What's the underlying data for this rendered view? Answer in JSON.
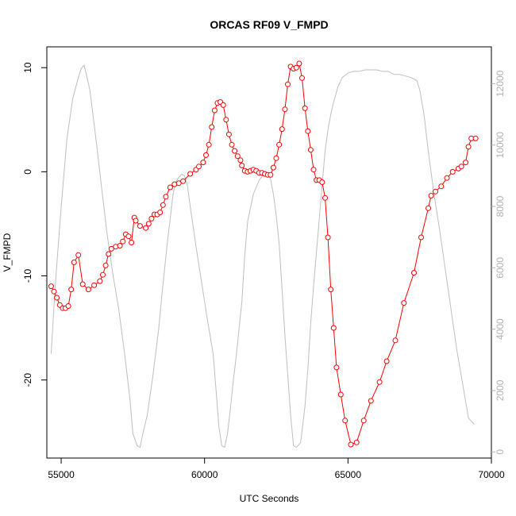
{
  "chart_data": {
    "type": "line",
    "title": "ORCAS RF09 V_FMPD",
    "xlabel": "UTC Seconds",
    "ylabel": "V_FMPD",
    "xlim": [
      54500,
      70000
    ],
    "ylim": [
      -27.5,
      12.0
    ],
    "xticks": [
      55000,
      60000,
      65000,
      70000
    ],
    "yticks": [
      -20,
      -10,
      0,
      10
    ],
    "y2lim": [
      -200,
      13200
    ],
    "y2ticks": [
      0,
      2000,
      4000,
      6000,
      8000,
      10000,
      12000
    ],
    "colors": {
      "series": "#ff0000",
      "secondary": "#bebebe"
    },
    "series": [
      {
        "marker": "open-circle",
        "x": [
          54650,
          54750,
          54850,
          54950,
          55050,
          55150,
          55250,
          55350,
          55450,
          55600,
          55750,
          55950,
          56150,
          56350,
          56450,
          56550,
          56650,
          56750,
          56900,
          57050,
          57150,
          57250,
          57350,
          57450,
          57550,
          57600,
          57750,
          57950,
          58050,
          58150,
          58250,
          58350,
          58450,
          58550,
          58650,
          58800,
          58950,
          59100,
          59250,
          59500,
          59700,
          59800,
          59950,
          60050,
          60150,
          60250,
          60350,
          60450,
          60550,
          60650,
          60750,
          60850,
          60950,
          61050,
          61150,
          61250,
          61300,
          61400,
          61500,
          61600,
          61700,
          61800,
          61900,
          62000,
          62100,
          62200,
          62300,
          62400,
          62500,
          62600,
          62700,
          62800,
          62900,
          63000,
          63100,
          63200,
          63300,
          63400,
          63500,
          63600,
          63700,
          63800,
          63900,
          64000,
          64100,
          64200,
          64300,
          64400,
          64500,
          64600,
          64750,
          64900,
          65100,
          65300,
          65550,
          65800,
          66100,
          66350,
          66650,
          66950,
          67300,
          67550,
          67800,
          67900,
          68050,
          68250,
          68450,
          68650,
          68850,
          68950,
          69100,
          69200,
          69300,
          69450
        ],
        "y": [
          -11.0,
          -11.5,
          -12.1,
          -12.8,
          -13.1,
          -13.1,
          -12.9,
          -11.3,
          -8.7,
          -8.0,
          -10.8,
          -11.3,
          -10.9,
          -10.5,
          -9.9,
          -9.0,
          -7.9,
          -7.4,
          -7.2,
          -7.1,
          -6.7,
          -6.0,
          -6.2,
          -6.8,
          -4.4,
          -4.7,
          -5.2,
          -5.4,
          -5.0,
          -4.5,
          -4.1,
          -4.1,
          -3.9,
          -3.2,
          -2.4,
          -1.5,
          -1.2,
          -1.1,
          -0.9,
          -0.2,
          0.2,
          0.5,
          0.9,
          1.6,
          2.6,
          4.3,
          5.9,
          6.6,
          6.7,
          6.4,
          5.0,
          3.6,
          2.6,
          2.0,
          1.5,
          1.1,
          0.6,
          0.1,
          0.0,
          0.1,
          0.2,
          0.1,
          -0.1,
          -0.1,
          -0.2,
          -0.3,
          -0.3,
          0.4,
          1.3,
          2.6,
          4.1,
          6.0,
          8.4,
          10.1,
          9.9,
          10.0,
          10.4,
          9.0,
          6.1,
          3.9,
          2.1,
          0.2,
          -0.8,
          -0.8,
          -1.0,
          -2.5,
          -6.3,
          -11.3,
          -15.0,
          -18.8,
          -21.4,
          -23.9,
          -26.2,
          -26.0,
          -23.9,
          -22.0,
          -20.2,
          -18.2,
          -16.2,
          -12.6,
          -9.7,
          -6.3,
          -3.5,
          -2.3,
          -1.9,
          -1.4,
          -0.6,
          0.0,
          0.3,
          0.5,
          0.9,
          2.4,
          3.2,
          3.2
        ]
      },
      {
        "axis": "right",
        "x": [
          54650,
          54800,
          55000,
          55200,
          55400,
          55600,
          55700,
          55800,
          56000,
          56200,
          56400,
          56600,
          56800,
          57000,
          57200,
          57400,
          57500,
          57650,
          57750,
          57850,
          58000,
          58200,
          58400,
          58500,
          58600,
          58700,
          58800,
          58900,
          59000,
          59100,
          59200,
          59300,
          59400,
          59500,
          59700,
          59900,
          60100,
          60300,
          60400,
          60500,
          60600,
          60700,
          60800,
          60900,
          61000,
          61100,
          61200,
          61300,
          61400,
          61500,
          61700,
          61900,
          62100,
          62200,
          62300,
          62400,
          62500,
          62600,
          62700,
          62800,
          62900,
          63000,
          63100,
          63200,
          63350,
          63500,
          63600,
          63700,
          63800,
          63900,
          64000,
          64100,
          64200,
          64300,
          64400,
          64500,
          64650,
          64800,
          65000,
          65200,
          65400,
          65600,
          65800,
          66000,
          66200,
          66400,
          66600,
          66800,
          67000,
          67200,
          67400,
          67500,
          67650,
          67800,
          68000,
          68200,
          68400,
          68600,
          68800,
          69000,
          69200,
          69400
        ],
        "y": [
          3200,
          5500,
          8000,
          10200,
          11500,
          12200,
          12500,
          12600,
          11800,
          10300,
          8700,
          7100,
          5800,
          4700,
          3300,
          1700,
          600,
          200,
          150,
          600,
          1200,
          2500,
          4000,
          5000,
          5900,
          6800,
          7600,
          8400,
          8800,
          8950,
          9050,
          9000,
          8700,
          8000,
          6700,
          5500,
          4300,
          3200,
          2000,
          800,
          200,
          150,
          600,
          1400,
          2300,
          3100,
          4000,
          4900,
          6400,
          7500,
          8400,
          8850,
          9100,
          9050,
          8900,
          8400,
          7700,
          6800,
          5300,
          3800,
          2500,
          1200,
          200,
          150,
          300,
          1500,
          2700,
          4200,
          5400,
          6500,
          7600,
          8700,
          9800,
          10500,
          11000,
          11400,
          11900,
          12200,
          12350,
          12400,
          12400,
          12450,
          12450,
          12450,
          12400,
          12400,
          12300,
          12300,
          12250,
          12200,
          12100,
          11800,
          11000,
          9800,
          8400,
          7200,
          5900,
          4600,
          3300,
          2200,
          1100,
          900
        ]
      }
    ]
  }
}
